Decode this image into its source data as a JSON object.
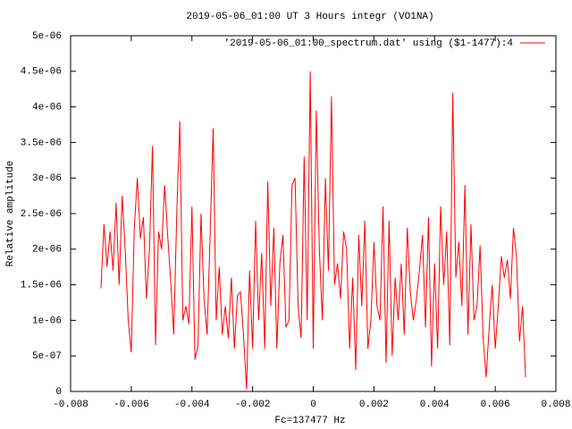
{
  "chart_data": {
    "type": "line",
    "title": "2019-05-06_01:00 UT 3 Hours integr (VO1NA)",
    "x_label": "Fc=137477 Hz",
    "y_label": "Relative amplitude",
    "legend": "top-right",
    "xlim": [
      -0.008,
      0.008
    ],
    "xticks": [
      -0.008,
      -0.006,
      -0.004,
      -0.002,
      0,
      0.002,
      0.004,
      0.006,
      0.008
    ],
    "ylim": [
      0,
      5e-06
    ],
    "yticks": [
      0,
      {
        "value": 5e-07,
        "label": "5e-07"
      },
      {
        "value": 1e-06,
        "label": "1e-06"
      },
      {
        "value": 1.5e-06,
        "label": "1.5e-06"
      },
      {
        "value": 2e-06,
        "label": "2e-06"
      },
      {
        "value": 2.5e-06,
        "label": "2.5e-06"
      },
      {
        "value": 3e-06,
        "label": "3e-06"
      },
      {
        "value": 3.5e-06,
        "label": "3.5e-06"
      },
      {
        "value": 4e-06,
        "label": "4e-06"
      },
      {
        "value": 4.5e-06,
        "label": "4.5e-06"
      },
      {
        "value": 5e-06,
        "label": "5e-06"
      }
    ],
    "x": [
      -0.007,
      -0.0069,
      -0.0068,
      -0.0067,
      -0.0066,
      -0.0065,
      -0.0064,
      -0.0063,
      -0.0062,
      -0.0061,
      -0.006,
      -0.0059,
      -0.0058,
      -0.0057,
      -0.0056,
      -0.0055,
      -0.0054,
      -0.0053,
      -0.0052,
      -0.0051,
      -0.005,
      -0.0049,
      -0.0048,
      -0.0047,
      -0.0046,
      -0.0045,
      -0.0044,
      -0.0043,
      -0.0042,
      -0.0041,
      -0.004,
      -0.0039,
      -0.0038,
      -0.0037,
      -0.0036,
      -0.0035,
      -0.0034,
      -0.0033,
      -0.0032,
      -0.0031,
      -0.003,
      -0.0029,
      -0.0028,
      -0.0027,
      -0.0026,
      -0.0025,
      -0.0024,
      -0.0023,
      -0.0022,
      -0.0021,
      -0.002,
      -0.0019,
      -0.0018,
      -0.0017,
      -0.0016,
      -0.0015,
      -0.0014,
      -0.0013,
      -0.0012,
      -0.0011,
      -0.001,
      -0.0009,
      -0.0008,
      -0.0007,
      -0.0006,
      -0.0005,
      -0.0004,
      -0.0003,
      -0.0002,
      -0.0001,
      0,
      0.0001,
      0.0002,
      0.0003,
      0.0004,
      0.0005,
      0.0006,
      0.0007,
      0.0008,
      0.0009,
      0.001,
      0.0011,
      0.0012,
      0.0013,
      0.0014,
      0.0015,
      0.0016,
      0.0017,
      0.0018,
      0.0019,
      0.002,
      0.0021,
      0.0022,
      0.0023,
      0.0024,
      0.0025,
      0.0026,
      0.0027,
      0.0028,
      0.0029,
      0.003,
      0.0031,
      0.0032,
      0.0033,
      0.0034,
      0.0035,
      0.0036,
      0.0037,
      0.0038,
      0.0039,
      0.004,
      0.0041,
      0.0042,
      0.0043,
      0.0044,
      0.0045,
      0.0046,
      0.0047,
      0.0048,
      0.0049,
      0.005,
      0.0051,
      0.0052,
      0.0053,
      0.0054,
      0.0055,
      0.0056,
      0.0057,
      0.0058,
      0.0059,
      0.006,
      0.0061,
      0.0062,
      0.0063,
      0.0064,
      0.0065,
      0.0066,
      0.0067,
      0.0068,
      0.0069,
      0.007
    ],
    "series": [
      {
        "name": "'2019-05-06_01:00_spectrum.dat' using ($1-1477):4",
        "color": "#ff0000",
        "values": [
          1.45e-06,
          2.35e-06,
          1.75e-06,
          2.25e-06,
          1.7e-06,
          2.65e-06,
          1.5e-06,
          2.75e-06,
          2e-06,
          1e-06,
          5.5e-07,
          2.3e-06,
          3e-06,
          2.15e-06,
          2.45e-06,
          1.3e-06,
          2e-06,
          3.45e-06,
          6.5e-07,
          2.25e-06,
          2e-06,
          2.9e-06,
          2.2e-06,
          1.55e-06,
          8e-07,
          2.5e-06,
          3.8e-06,
          1e-06,
          1.2e-06,
          9.5e-07,
          2.6e-06,
          4.5e-07,
          6.5e-07,
          2.5e-06,
          1.3e-06,
          8e-07,
          2.2e-06,
          3.7e-06,
          1e-06,
          1.75e-06,
          8e-07,
          1.2e-06,
          7.5e-07,
          1.6e-06,
          6e-07,
          1.35e-06,
          1.4e-06,
          8e-07,
          3e-08,
          1.7e-06,
          6e-07,
          2.4e-06,
          1e-06,
          1.95e-06,
          6e-07,
          2.95e-06,
          1.2e-06,
          2.3e-06,
          6e-07,
          1.8e-06,
          2.2e-06,
          9e-07,
          1e-06,
          2.9e-06,
          3e-06,
          1.2e-06,
          7.5e-07,
          3.3e-06,
          1e-06,
          4.5e-06,
          6e-07,
          3.95e-06,
          2e-06,
          1e-06,
          3e-06,
          1.7e-06,
          4.15e-06,
          1.5e-06,
          1.8e-06,
          1.3e-06,
          2.25e-06,
          2e-06,
          6e-07,
          1.6e-06,
          3e-07,
          2.2e-06,
          1.2e-06,
          2.4e-06,
          6e-07,
          1e-06,
          2.1e-06,
          1.2e-06,
          1e-06,
          2.6e-06,
          4e-07,
          2.4e-06,
          5e-07,
          1.6e-06,
          1e-06,
          1.8e-06,
          8e-07,
          2.3e-06,
          1.4e-06,
          1e-06,
          1.3e-06,
          1.7e-06,
          2.2e-06,
          9e-07,
          2.45e-06,
          3.5e-07,
          1.8e-06,
          6e-07,
          2.6e-06,
          1.5e-06,
          2.25e-06,
          6.5e-07,
          4.2e-06,
          1.6e-06,
          2.1e-06,
          1.2e-06,
          2.9e-06,
          8e-07,
          2.35e-06,
          1e-06,
          1.2e-06,
          2.05e-06,
          7.5e-07,
          2e-07,
          9e-07,
          1.5e-06,
          6e-07,
          1.2e-06,
          1.9e-06,
          1.6e-06,
          1.85e-06,
          1.3e-06,
          2.3e-06,
          1.9e-06,
          7e-07,
          1.2e-06,
          2e-07
        ]
      }
    ]
  }
}
